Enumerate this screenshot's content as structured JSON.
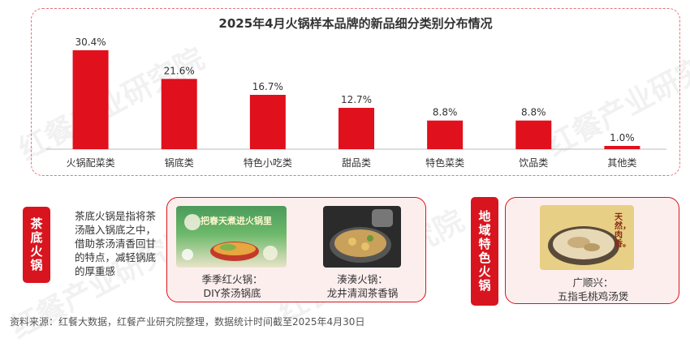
{
  "watermark_text": "红餐产业研究院",
  "chart_data": {
    "type": "bar",
    "title": "2025年4月火锅样本品牌的新品细分类别分布情况",
    "categories": [
      "火锅配菜类",
      "锅底类",
      "特色小吃类",
      "甜品类",
      "特色菜类",
      "饮品类",
      "其他类"
    ],
    "values": [
      30.4,
      21.6,
      16.7,
      12.7,
      8.8,
      8.8,
      1.0
    ],
    "value_labels": [
      "30.4%",
      "21.6%",
      "16.7%",
      "12.7%",
      "8.8%",
      "8.8%",
      "1.0%"
    ],
    "unit": "%",
    "ylim": [
      0,
      30.4
    ],
    "color": "#e0101c",
    "grid": false,
    "legend": "none"
  },
  "tea_section": {
    "tag": "茶底火锅",
    "description": "茶底火锅是指将茶汤融入锅底之中，借助茶汤清香回甘的特点，减轻锅底的厚重感",
    "cases": [
      {
        "brand": "季季红火锅：",
        "product": "DIY茶汤锅底",
        "image_text": "把春天煮进火锅里"
      },
      {
        "brand": "湊湊火锅：",
        "product": "龙井清润茶香锅"
      }
    ]
  },
  "regional_section": {
    "tag": "地域特色火锅",
    "cases": [
      {
        "brand": "广顺兴：",
        "product": "五指毛桃鸡汤煲",
        "image_text": "天然，肉香。"
      }
    ]
  },
  "footer": "资料来源：红餐大数据，红餐产业研究院整理，数据统计时间截至2025年4月30日",
  "colors": {
    "accent": "#d8151f",
    "panel_bg": "#fdeeee",
    "dashed_border": "#e8727a"
  }
}
